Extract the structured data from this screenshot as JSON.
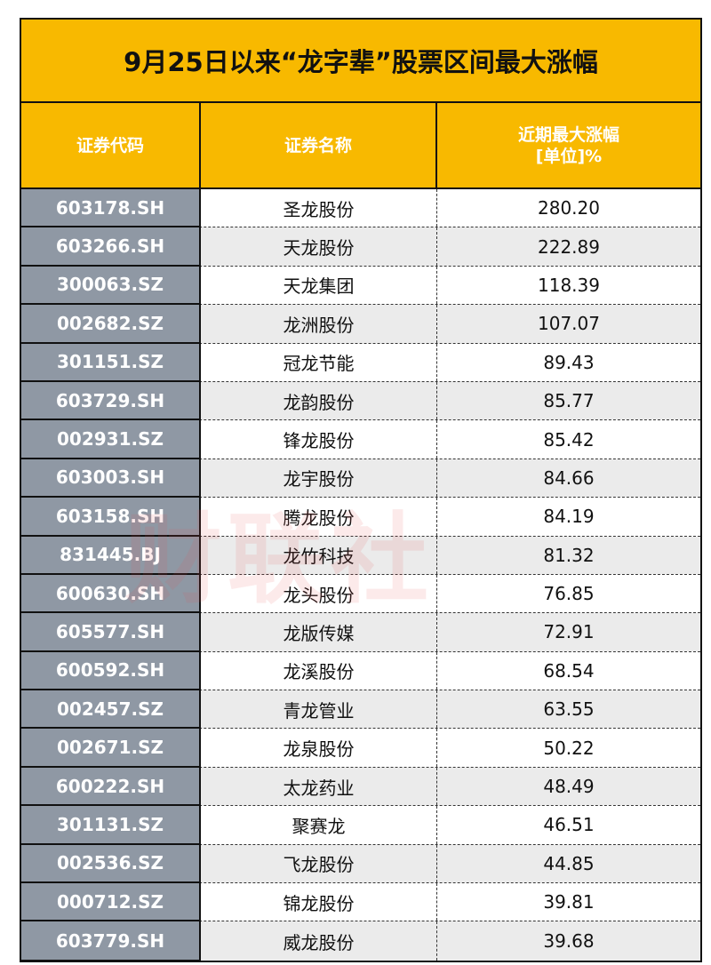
{
  "title": "9月25日以来“龙字辈”股票区间最大涨幅",
  "headers": {
    "code": "证券代码",
    "name": "证券名称",
    "gain_line1": "近期最大涨幅",
    "gain_line2": "[单位]%"
  },
  "watermark": "财联社",
  "rows": [
    {
      "code": "603178.SH",
      "name": "圣龙股份",
      "gain": "280.20"
    },
    {
      "code": "603266.SH",
      "name": "天龙股份",
      "gain": "222.89"
    },
    {
      "code": "300063.SZ",
      "name": "天龙集团",
      "gain": "118.39"
    },
    {
      "code": "002682.SZ",
      "name": "龙洲股份",
      "gain": "107.07"
    },
    {
      "code": "301151.SZ",
      "name": "冠龙节能",
      "gain": "89.43"
    },
    {
      "code": "603729.SH",
      "name": "龙韵股份",
      "gain": "85.77"
    },
    {
      "code": "002931.SZ",
      "name": "锋龙股份",
      "gain": "85.42"
    },
    {
      "code": "603003.SH",
      "name": "龙宇股份",
      "gain": "84.66"
    },
    {
      "code": "603158.SH",
      "name": "腾龙股份",
      "gain": "84.19"
    },
    {
      "code": "831445.BJ",
      "name": "龙竹科技",
      "gain": "81.32"
    },
    {
      "code": "600630.SH",
      "name": "龙头股份",
      "gain": "76.85"
    },
    {
      "code": "605577.SH",
      "name": "龙版传媒",
      "gain": "72.91"
    },
    {
      "code": "600592.SH",
      "name": "龙溪股份",
      "gain": "68.54"
    },
    {
      "code": "002457.SZ",
      "name": "青龙管业",
      "gain": "63.55"
    },
    {
      "code": "002671.SZ",
      "name": "龙泉股份",
      "gain": "50.22"
    },
    {
      "code": "600222.SH",
      "name": "太龙药业",
      "gain": "48.49"
    },
    {
      "code": "301131.SZ",
      "name": "聚赛龙",
      "gain": "46.51"
    },
    {
      "code": "002536.SZ",
      "name": "飞龙股份",
      "gain": "44.85"
    },
    {
      "code": "000712.SZ",
      "name": "锦龙股份",
      "gain": "39.81"
    },
    {
      "code": "603779.SH",
      "name": "威龙股份",
      "gain": "39.68"
    }
  ]
}
